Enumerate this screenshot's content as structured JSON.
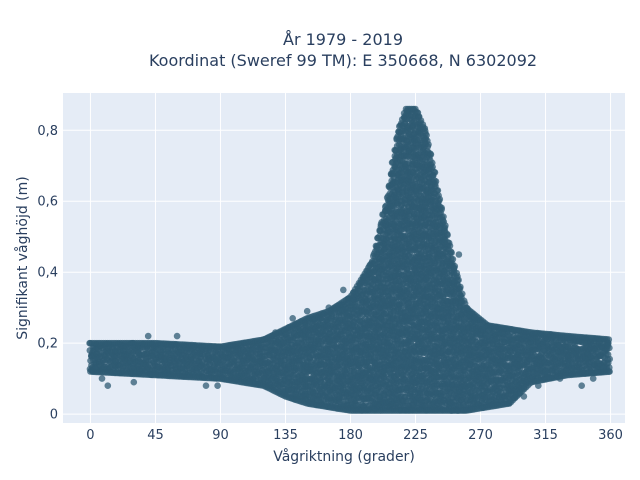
{
  "chart_data": {
    "type": "scatter",
    "title_line1": "År 1979 - 2019",
    "title_line2": "Koordinat (Sweref 99 TM): E 350668, N 6302092",
    "xlabel": "Vågriktning (grader)",
    "ylabel": "Signifikant våghöjd (m)",
    "xlim": [
      -19,
      370
    ],
    "ylim": [
      -0.025,
      0.905
    ],
    "xticks": [
      0,
      45,
      90,
      135,
      180,
      225,
      270,
      315,
      360
    ],
    "xtick_labels": [
      "0",
      "45",
      "90",
      "135",
      "180",
      "225",
      "270",
      "315",
      "360"
    ],
    "yticks": [
      0,
      0.2,
      0.4,
      0.6,
      0.8
    ],
    "ytick_labels": [
      "0",
      "0,2",
      "0,4",
      "0,6",
      "0,8"
    ],
    "grid": true,
    "colors": {
      "marker": "#2f5b73",
      "plot_bg": "#e5ecf6",
      "grid": "#ffffff",
      "text": "#2a3f5f"
    },
    "envelope": [
      {
        "x": 0,
        "min": 0.12,
        "max": 0.2
      },
      {
        "x": 45,
        "min": 0.11,
        "max": 0.2
      },
      {
        "x": 90,
        "min": 0.1,
        "max": 0.19
      },
      {
        "x": 120,
        "min": 0.08,
        "max": 0.21
      },
      {
        "x": 135,
        "min": 0.05,
        "max": 0.24
      },
      {
        "x": 150,
        "min": 0.03,
        "max": 0.27
      },
      {
        "x": 165,
        "min": 0.02,
        "max": 0.29
      },
      {
        "x": 180,
        "min": 0.01,
        "max": 0.33
      },
      {
        "x": 195,
        "min": 0.01,
        "max": 0.43
      },
      {
        "x": 205,
        "min": 0.01,
        "max": 0.6
      },
      {
        "x": 212,
        "min": 0.01,
        "max": 0.78
      },
      {
        "x": 218,
        "min": 0.01,
        "max": 0.86
      },
      {
        "x": 225,
        "min": 0.01,
        "max": 0.86
      },
      {
        "x": 232,
        "min": 0.01,
        "max": 0.8
      },
      {
        "x": 240,
        "min": 0.01,
        "max": 0.64
      },
      {
        "x": 250,
        "min": 0.01,
        "max": 0.45
      },
      {
        "x": 260,
        "min": 0.01,
        "max": 0.3
      },
      {
        "x": 275,
        "min": 0.02,
        "max": 0.25
      },
      {
        "x": 290,
        "min": 0.03,
        "max": 0.24
      },
      {
        "x": 305,
        "min": 0.09,
        "max": 0.23
      },
      {
        "x": 330,
        "min": 0.11,
        "max": 0.22
      },
      {
        "x": 360,
        "min": 0.12,
        "max": 0.21
      }
    ],
    "outlier_points": [
      {
        "x": 3,
        "y": 0.13
      },
      {
        "x": 8,
        "y": 0.1
      },
      {
        "x": 12,
        "y": 0.08
      },
      {
        "x": 30,
        "y": 0.09
      },
      {
        "x": 40,
        "y": 0.22
      },
      {
        "x": 60,
        "y": 0.22
      },
      {
        "x": 80,
        "y": 0.08
      },
      {
        "x": 88,
        "y": 0.08
      },
      {
        "x": 100,
        "y": 0.1
      },
      {
        "x": 110,
        "y": 0.09
      },
      {
        "x": 120,
        "y": 0.1
      },
      {
        "x": 128,
        "y": 0.23
      },
      {
        "x": 140,
        "y": 0.27
      },
      {
        "x": 150,
        "y": 0.29
      },
      {
        "x": 165,
        "y": 0.3
      },
      {
        "x": 175,
        "y": 0.35
      },
      {
        "x": 190,
        "y": 0.39
      },
      {
        "x": 255,
        "y": 0.45
      },
      {
        "x": 262,
        "y": 0.28
      },
      {
        "x": 285,
        "y": 0.23
      },
      {
        "x": 295,
        "y": 0.14
      },
      {
        "x": 300,
        "y": 0.05
      },
      {
        "x": 305,
        "y": 0.1
      },
      {
        "x": 310,
        "y": 0.08
      },
      {
        "x": 315,
        "y": 0.12
      },
      {
        "x": 325,
        "y": 0.1
      },
      {
        "x": 340,
        "y": 0.08
      },
      {
        "x": 348,
        "y": 0.1
      },
      {
        "x": 355,
        "y": 0.13
      }
    ]
  }
}
